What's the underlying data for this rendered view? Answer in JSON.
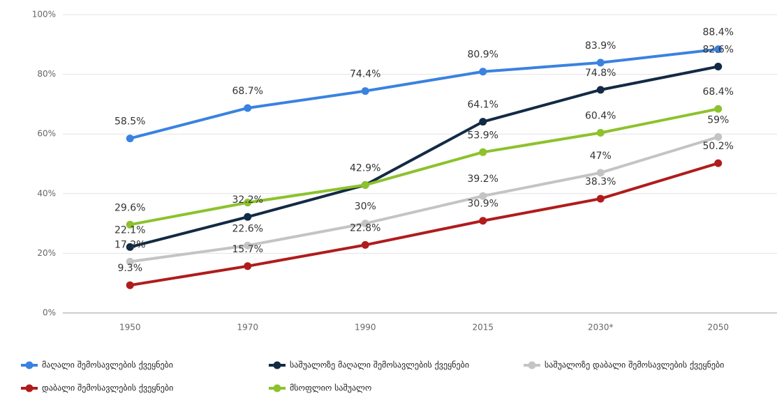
{
  "chart_data": {
    "type": "line",
    "categories": [
      "1950",
      "1970",
      "1990",
      "2015",
      "2030*",
      "2050"
    ],
    "series": [
      {
        "name": "მაღალი შემოსავლების ქვეყნები",
        "color": "#3a82e0",
        "values": [
          58.5,
          68.7,
          74.4,
          80.9,
          83.9,
          88.4
        ],
        "value_labels": [
          "58.5%",
          "68.7%",
          "74.4%",
          "80.9%",
          "83.9%",
          "88.4%"
        ]
      },
      {
        "name": "საშუალოზე მაღალი შემოსავლების ქვეყნები",
        "color": "#132a45",
        "values": [
          22.1,
          32.2,
          42.9,
          64.1,
          74.8,
          82.6
        ],
        "value_labels": [
          "22.1%",
          "32.2%",
          "42.9%",
          "64.1%",
          "74.8%",
          "82.6%"
        ]
      },
      {
        "name": "საშუალოზე დაბალი შემოსავლების ქვეყნები",
        "color": "#c4c4c4",
        "values": [
          17.2,
          22.6,
          30,
          39.2,
          47,
          59
        ],
        "value_labels": [
          "17.2%",
          "22.6%",
          "30%",
          "39.2%",
          "47%",
          "59%"
        ]
      },
      {
        "name": "დაბალი შემოსავლების ქვეყნები",
        "color": "#b01c1c",
        "values": [
          9.3,
          15.7,
          22.8,
          30.9,
          38.3,
          50.2
        ],
        "value_labels": [
          "9.3%",
          "15.7%",
          "22.8%",
          "30.9%",
          "38.3%",
          "50.2%"
        ]
      },
      {
        "name": "მსოფლიო საშუალო",
        "color": "#8cc22c",
        "values": [
          29.6,
          37,
          42.9,
          53.9,
          60.4,
          68.4
        ],
        "value_labels": [
          "29.6%",
          null,
          null,
          "53.9%",
          "60.4%",
          "68.4%"
        ]
      }
    ],
    "ylim": [
      0,
      100
    ],
    "yticks": [
      {
        "value": 0,
        "label": "0%"
      },
      {
        "value": 20,
        "label": "20%"
      },
      {
        "value": 40,
        "label": "40%"
      },
      {
        "value": 60,
        "label": "60%"
      },
      {
        "value": 80,
        "label": "80%"
      },
      {
        "value": 100,
        "label": "100%"
      }
    ],
    "grid": true
  }
}
